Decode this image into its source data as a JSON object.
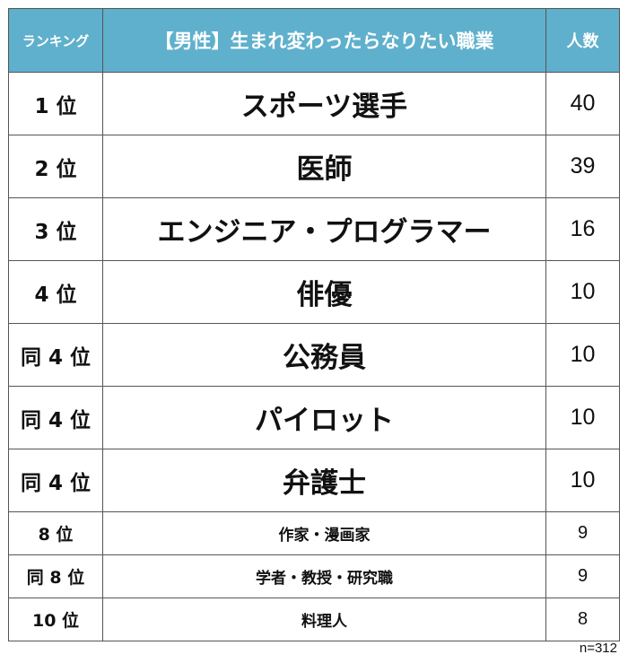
{
  "header": {
    "rank_label": "ランキング",
    "title": "【男性】生まれ変わったらなりたい職業",
    "count_label": "人数"
  },
  "rows": [
    {
      "rank": "1 位",
      "job": "スポーツ選手",
      "count": "40"
    },
    {
      "rank": "2 位",
      "job": "医師",
      "count": "39"
    },
    {
      "rank": "3 位",
      "job": "エンジニア・プログラマー",
      "count": "16"
    },
    {
      "rank": "4 位",
      "job": "俳優",
      "count": "10"
    },
    {
      "rank": "同 4 位",
      "job": "公務員",
      "count": "10"
    },
    {
      "rank": "同 4 位",
      "job": "パイロット",
      "count": "10"
    },
    {
      "rank": "同 4 位",
      "job": "弁護士",
      "count": "10"
    },
    {
      "rank": "8 位",
      "job": "作家・漫画家",
      "count": "9"
    },
    {
      "rank": "同 8 位",
      "job": "学者・教授・研究職",
      "count": "9"
    },
    {
      "rank": "10 位",
      "job": "料理人",
      "count": "8"
    }
  ],
  "footer": {
    "sample_note": "n=312"
  }
}
